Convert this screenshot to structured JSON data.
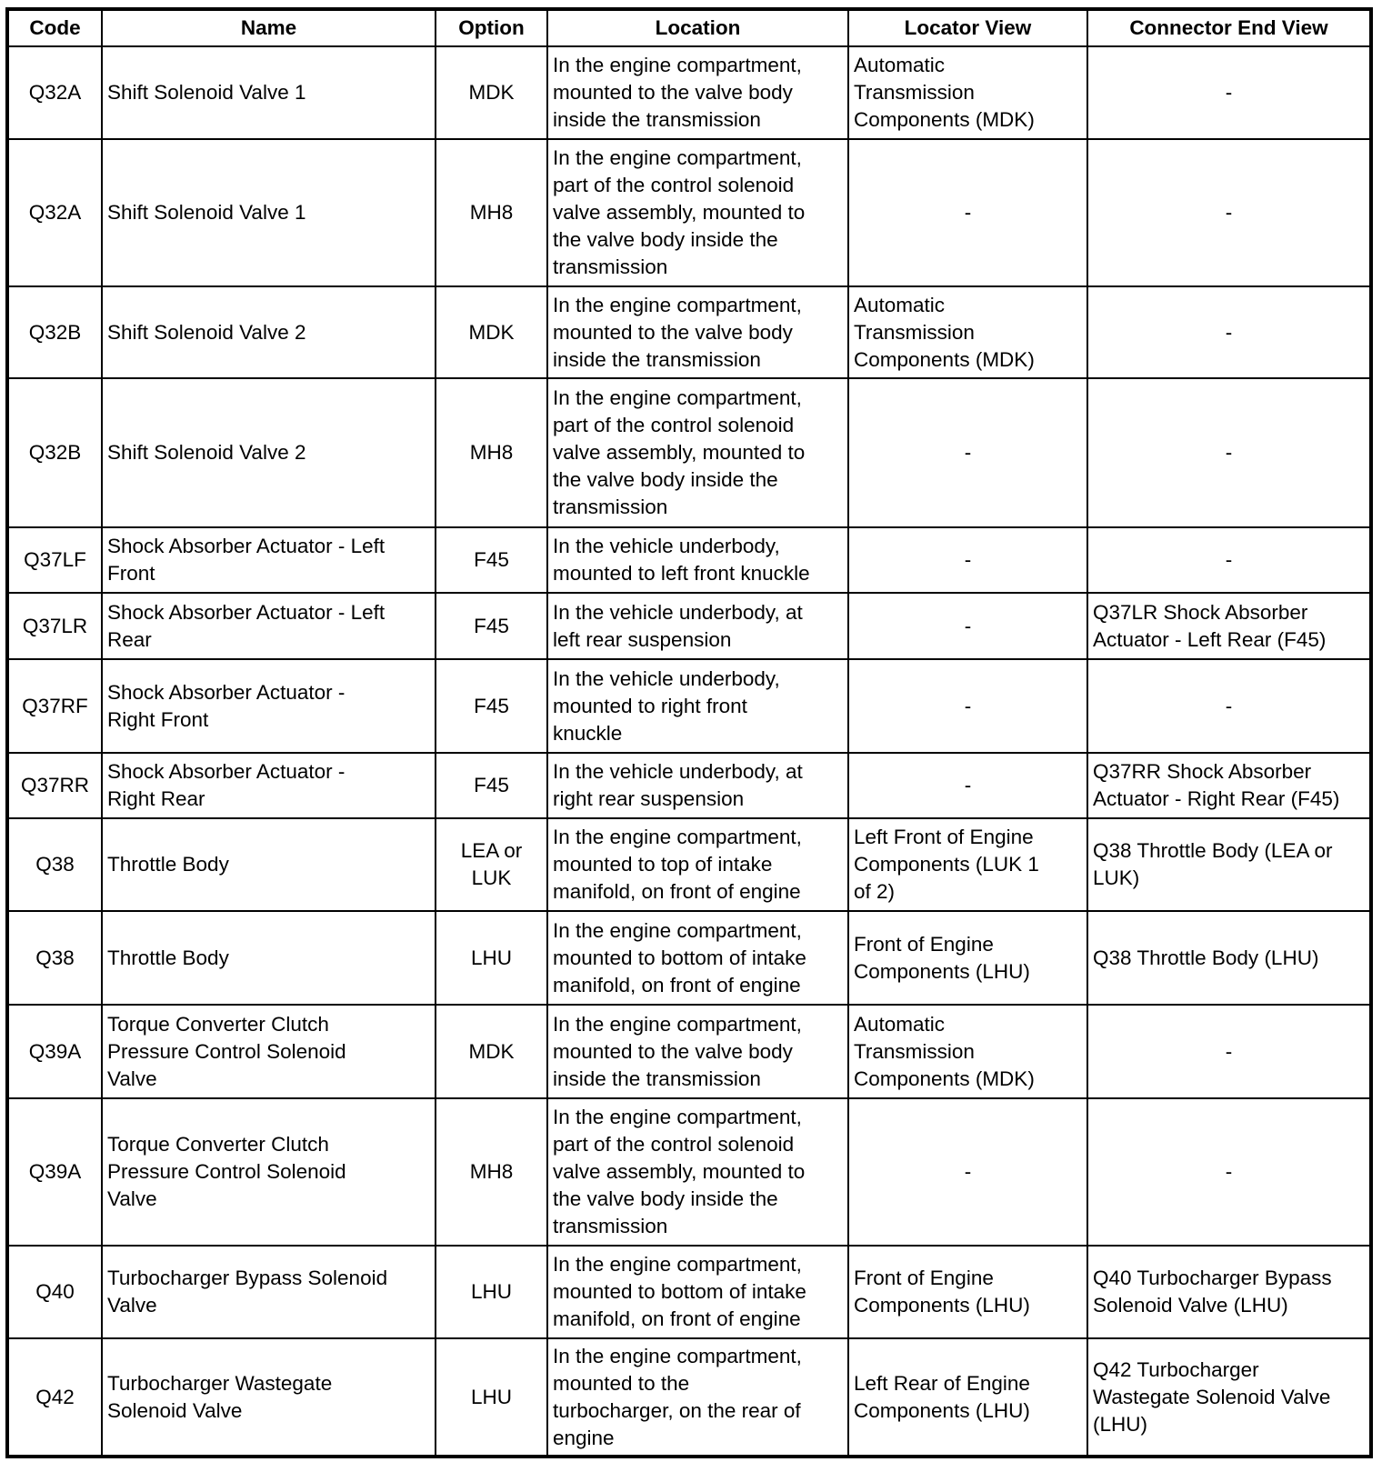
{
  "table": {
    "headers": [
      "Code",
      "Name",
      "Option",
      "Location",
      "Locator View",
      "Connector End View"
    ],
    "rows": [
      {
        "code": "Q32A",
        "name": "Shift Solenoid Valve 1",
        "option": "MDK",
        "location": "In the engine compartment,\nmounted to the valve body\ninside the transmission",
        "locator": "Automatic\nTransmission\nComponents (MDK)",
        "connector": "-"
      },
      {
        "code": "Q32A",
        "name": "Shift Solenoid Valve 1",
        "option": "MH8",
        "location": "In the engine compartment,\npart of the control solenoid\nvalve assembly, mounted to\nthe valve body inside the\ntransmission",
        "locator": "-",
        "connector": "-"
      },
      {
        "code": "Q32B",
        "name": "Shift Solenoid Valve 2",
        "option": "MDK",
        "location": "In the engine compartment,\nmounted to the valve body\ninside the transmission",
        "locator": "Automatic\nTransmission\nComponents (MDK)",
        "connector": "-"
      },
      {
        "code": "Q32B",
        "name": "Shift Solenoid Valve 2",
        "option": "MH8",
        "location": "In the engine compartment,\npart of the control solenoid\nvalve assembly, mounted to\nthe valve body inside the\ntransmission",
        "locator": "-",
        "connector": "-"
      },
      {
        "code": "Q37LF",
        "name": "Shock Absorber Actuator - Left\nFront",
        "option": "F45",
        "location": "In the vehicle underbody,\nmounted to left front knuckle",
        "locator": "-",
        "connector": "-"
      },
      {
        "code": "Q37LR",
        "name": "Shock Absorber Actuator - Left\nRear",
        "option": "F45",
        "location": "In the vehicle underbody, at\nleft rear suspension",
        "locator": "-",
        "connector": "Q37LR Shock Absorber\nActuator - Left Rear (F45)"
      },
      {
        "code": "Q37RF",
        "name": "Shock Absorber Actuator -\nRight Front",
        "option": "F45",
        "location": "In the vehicle underbody,\nmounted to right front\nknuckle",
        "locator": "-",
        "connector": "-"
      },
      {
        "code": "Q37RR",
        "name": "Shock Absorber Actuator -\nRight Rear",
        "option": "F45",
        "location": "In the vehicle underbody, at\nright rear suspension",
        "locator": "-",
        "connector": "Q37RR Shock Absorber\nActuator - Right Rear (F45)"
      },
      {
        "code": "Q38",
        "name": "Throttle Body",
        "option": "LEA or\nLUK",
        "location": "In the engine compartment,\nmounted to top of intake\nmanifold, on front of engine",
        "locator": "Left Front of Engine\nComponents (LUK 1\nof 2)",
        "connector": "Q38 Throttle Body (LEA or\nLUK)"
      },
      {
        "code": "Q38",
        "name": "Throttle Body",
        "option": "LHU",
        "location": "In the engine compartment,\nmounted to bottom of intake\nmanifold, on front of engine",
        "locator": "Front of Engine\nComponents (LHU)",
        "connector": "Q38 Throttle Body (LHU)"
      },
      {
        "code": "Q39A",
        "name": "Torque Converter Clutch\nPressure Control Solenoid\nValve",
        "option": "MDK",
        "location": "In the engine compartment,\nmounted to the valve body\ninside the transmission",
        "locator": "Automatic\nTransmission\nComponents (MDK)",
        "connector": "-"
      },
      {
        "code": "Q39A",
        "name": "Torque Converter Clutch\nPressure Control Solenoid\nValve",
        "option": "MH8",
        "location": "In the engine compartment,\npart of the control solenoid\nvalve assembly, mounted to\nthe valve body inside the\ntransmission",
        "locator": "-",
        "connector": "-"
      },
      {
        "code": "Q40",
        "name": "Turbocharger Bypass Solenoid\nValve",
        "option": "LHU",
        "location": "In the engine compartment,\nmounted to bottom of intake\nmanifold, on front of engine",
        "locator": "Front of Engine\nComponents (LHU)",
        "connector": "Q40 Turbocharger Bypass\nSolenoid Valve (LHU)"
      },
      {
        "code": "Q42",
        "name": "Turbocharger Wastegate\nSolenoid Valve",
        "option": "LHU",
        "location": "In the engine compartment,\nmounted to the\nturbocharger, on the rear of\nengine",
        "locator": "Left Rear of Engine\nComponents (LHU)",
        "connector": "Q42 Turbocharger\nWastegate Solenoid Valve\n(LHU)"
      }
    ]
  }
}
